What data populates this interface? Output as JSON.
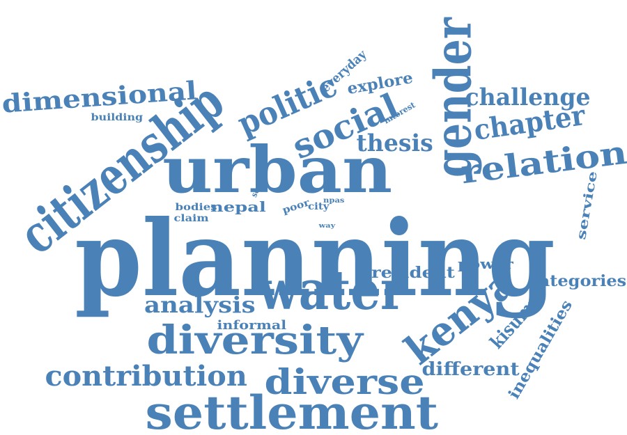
{
  "color": "#4a82b8",
  "words": [
    {
      "id": "planning",
      "text": "planning"
    },
    {
      "id": "citizenship",
      "text": "citizenship"
    },
    {
      "id": "urban",
      "text": "urban"
    },
    {
      "id": "water",
      "text": "water"
    },
    {
      "id": "gender",
      "text": "gender"
    },
    {
      "id": "kenya",
      "text": "kenya"
    },
    {
      "id": "settlement",
      "text": "settlement"
    },
    {
      "id": "diversity",
      "text": "diversity"
    },
    {
      "id": "diverse",
      "text": "diverse"
    },
    {
      "id": "contribution",
      "text": "contribution"
    },
    {
      "id": "relation",
      "text": "relation"
    },
    {
      "id": "social",
      "text": "social"
    },
    {
      "id": "politic",
      "text": "politic"
    },
    {
      "id": "chapter",
      "text": "chapter"
    },
    {
      "id": "challenge",
      "text": "challenge"
    },
    {
      "id": "dimensional",
      "text": "dimensional"
    },
    {
      "id": "analysis",
      "text": "analysis"
    },
    {
      "id": "thesis",
      "text": "thesis"
    },
    {
      "id": "explore",
      "text": "explore"
    },
    {
      "id": "everyday",
      "text": "everyday"
    },
    {
      "id": "kisumu",
      "text": "kisumu"
    },
    {
      "id": "different",
      "text": "different"
    },
    {
      "id": "inequalities",
      "text": "inequalities"
    },
    {
      "id": "categories",
      "text": "categories"
    },
    {
      "id": "resident",
      "text": "resident"
    },
    {
      "id": "power",
      "text": "power"
    },
    {
      "id": "service",
      "text": "service"
    },
    {
      "id": "informal",
      "text": "informal"
    },
    {
      "id": "nepal",
      "text": "nepal"
    },
    {
      "id": "bodies",
      "text": "bodies"
    },
    {
      "id": "claim",
      "text": "claim"
    },
    {
      "id": "building",
      "text": "building"
    },
    {
      "id": "interest",
      "text": "interest"
    },
    {
      "id": "scale",
      "text": "scale"
    },
    {
      "id": "poor",
      "text": "poor"
    },
    {
      "id": "city",
      "text": "city"
    },
    {
      "id": "npas",
      "text": "npas"
    },
    {
      "id": "way",
      "text": "way"
    }
  ]
}
